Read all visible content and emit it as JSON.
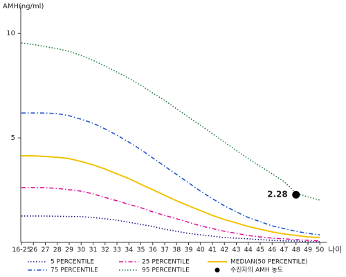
{
  "chart_data": {
    "type": "line",
    "y_label": "AMH(ng/ml)",
    "x_label": "나이",
    "categories": [
      "16-25",
      "26",
      "27",
      "28",
      "29",
      "30",
      "31",
      "32",
      "33",
      "34",
      "35",
      "36",
      "37",
      "38",
      "39",
      "40",
      "41",
      "42",
      "43",
      "44",
      "45",
      "46",
      "47",
      "48",
      "49",
      "50"
    ],
    "ylim": [
      0,
      11.2
    ],
    "yticks": [
      5,
      10
    ],
    "series": [
      {
        "name": "5 PERCENTILE",
        "color": "#1a1a80",
        "dash": "dot",
        "values": [
          1.26,
          1.26,
          1.26,
          1.25,
          1.24,
          1.23,
          1.19,
          1.13,
          1.06,
          0.96,
          0.86,
          0.76,
          0.63,
          0.53,
          0.43,
          0.36,
          0.3,
          0.23,
          0.2,
          0.17,
          0.13,
          0.1,
          0.07,
          0.07,
          0.03,
          0.03
        ]
      },
      {
        "name": "25 PERCENTILE",
        "color": "#e0139a",
        "dash": "dashdot",
        "values": [
          2.62,
          2.62,
          2.62,
          2.58,
          2.52,
          2.45,
          2.32,
          2.15,
          1.99,
          1.82,
          1.66,
          1.46,
          1.29,
          1.13,
          0.96,
          0.79,
          0.66,
          0.53,
          0.43,
          0.33,
          0.26,
          0.2,
          0.17,
          0.13,
          0.1,
          0.07
        ]
      },
      {
        "name": "MEDIAN(50 PERCENTILE)",
        "color": "#f2c200",
        "dash": "solid",
        "values": [
          4.14,
          4.14,
          4.11,
          4.07,
          4.01,
          3.87,
          3.71,
          3.51,
          3.28,
          3.05,
          2.78,
          2.52,
          2.25,
          1.99,
          1.75,
          1.52,
          1.29,
          1.09,
          0.93,
          0.76,
          0.63,
          0.5,
          0.4,
          0.33,
          0.26,
          0.23
        ]
      },
      {
        "name": "75 PERCENTILE",
        "color": "#2255cc",
        "dash": "dashdot",
        "values": [
          6.19,
          6.19,
          6.19,
          6.16,
          6.06,
          5.89,
          5.7,
          5.43,
          5.13,
          4.8,
          4.44,
          4.04,
          3.64,
          3.25,
          2.85,
          2.45,
          2.09,
          1.75,
          1.46,
          1.19,
          0.99,
          0.79,
          0.66,
          0.53,
          0.43,
          0.36
        ]
      },
      {
        "name": "95 PERCENTILE",
        "color": "#1f7a3a",
        "dash": "dot",
        "values": [
          9.54,
          9.47,
          9.37,
          9.27,
          9.14,
          8.94,
          8.71,
          8.44,
          8.15,
          7.85,
          7.52,
          7.15,
          6.79,
          6.39,
          5.99,
          5.6,
          5.2,
          4.8,
          4.4,
          4.01,
          3.64,
          3.28,
          2.91,
          2.35,
          2.18,
          2.02
        ]
      }
    ],
    "marker": {
      "name": "수진자의 AMH 농도",
      "x": "48",
      "value": 2.28,
      "color": "#000000"
    }
  }
}
